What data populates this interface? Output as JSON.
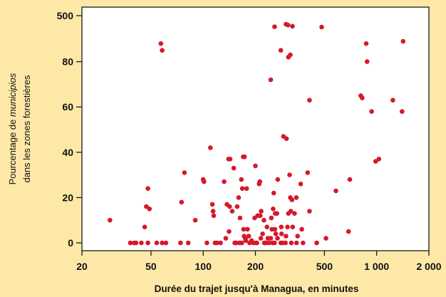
{
  "chart_data": {
    "type": "scatter",
    "title": "",
    "xlabel": "Durée du trajet jusqu'à Managua, en minutes",
    "ylabel": {
      "line1_prefix": "Pourcentage de ",
      "line1_italic": "municipios",
      "line2": "dans les zones forestières"
    },
    "x_scale": "log",
    "xlim": [
      20,
      2000
    ],
    "ylim": [
      0,
      500
    ],
    "x_ticks": [
      {
        "value": 20,
        "label": "20"
      },
      {
        "value": 50,
        "label": "50"
      },
      {
        "value": 100,
        "label": "100"
      },
      {
        "value": 200,
        "label": "200"
      },
      {
        "value": 500,
        "label": "500"
      },
      {
        "value": 1000,
        "label": "1 000"
      },
      {
        "value": 2000,
        "label": "2 000"
      }
    ],
    "y_ticks": [
      {
        "value": 0,
        "label": "0"
      },
      {
        "value": 20,
        "label": "20"
      },
      {
        "value": 40,
        "label": "40"
      },
      {
        "value": 60,
        "label": "60"
      },
      {
        "value": 80,
        "label": "80"
      },
      {
        "value": 500,
        "label": "500"
      }
    ],
    "grid": false,
    "point_color": "#d7182a",
    "background_color": "#fde8a8",
    "plot_background": "#ffffff",
    "points": [
      [
        29,
        10
      ],
      [
        38,
        0
      ],
      [
        40,
        0
      ],
      [
        41,
        0
      ],
      [
        44,
        0
      ],
      [
        46,
        7
      ],
      [
        47,
        16
      ],
      [
        48,
        0
      ],
      [
        48,
        24
      ],
      [
        49,
        15
      ],
      [
        54,
        0
      ],
      [
        58,
        0
      ],
      [
        61,
        0
      ],
      [
        74,
        0
      ],
      [
        75,
        18
      ],
      [
        78,
        31
      ],
      [
        82,
        0
      ],
      [
        90,
        10
      ],
      [
        101,
        27
      ],
      [
        100,
        28
      ],
      [
        105,
        0
      ],
      [
        110,
        42
      ],
      [
        113,
        17
      ],
      [
        114,
        14
      ],
      [
        115,
        12
      ],
      [
        117,
        0
      ],
      [
        120,
        0
      ],
      [
        126,
        0
      ],
      [
        132,
        27
      ],
      [
        135,
        2
      ],
      [
        137,
        17
      ],
      [
        140,
        37
      ],
      [
        141,
        5
      ],
      [
        142,
        16
      ],
      [
        143,
        37
      ],
      [
        147,
        14
      ],
      [
        150,
        33
      ],
      [
        152,
        0
      ],
      [
        155,
        0
      ],
      [
        157,
        16
      ],
      [
        160,
        20
      ],
      [
        162,
        0
      ],
      [
        163,
        11
      ],
      [
        166,
        28
      ],
      [
        167,
        0
      ],
      [
        168,
        24
      ],
      [
        170,
        38
      ],
      [
        171,
        6
      ],
      [
        172,
        3
      ],
      [
        173,
        38
      ],
      [
        175,
        2
      ],
      [
        176,
        1
      ],
      [
        178,
        24
      ],
      [
        180,
        6
      ],
      [
        183,
        3
      ],
      [
        185,
        0
      ],
      [
        190,
        1
      ],
      [
        195,
        0
      ],
      [
        198,
        11
      ],
      [
        200,
        34
      ],
      [
        202,
        0
      ],
      [
        204,
        0
      ],
      [
        206,
        12
      ],
      [
        210,
        26
      ],
      [
        212,
        27
      ],
      [
        213,
        12
      ],
      [
        215,
        2
      ],
      [
        216,
        14
      ],
      [
        220,
        4
      ],
      [
        224,
        10
      ],
      [
        225,
        0
      ],
      [
        228,
        0
      ],
      [
        230,
        0
      ],
      [
        233,
        7
      ],
      [
        236,
        2
      ],
      [
        240,
        0
      ],
      [
        245,
        2
      ],
      [
        247,
        11
      ],
      [
        249,
        6
      ],
      [
        252,
        0
      ],
      [
        253,
        15
      ],
      [
        255,
        22
      ],
      [
        258,
        0
      ],
      [
        259,
        6
      ],
      [
        260,
        13
      ],
      [
        262,
        4
      ],
      [
        266,
        13
      ],
      [
        268,
        2
      ],
      [
        269,
        28
      ],
      [
        280,
        0
      ],
      [
        282,
        7
      ],
      [
        283,
        4
      ],
      [
        286,
        0
      ],
      [
        298,
        0
      ],
      [
        300,
        3
      ],
      [
        306,
        7
      ],
      [
        310,
        13
      ],
      [
        315,
        30
      ],
      [
        318,
        20
      ],
      [
        320,
        14
      ],
      [
        322,
        0
      ],
      [
        325,
        19
      ],
      [
        328,
        7
      ],
      [
        336,
        13
      ],
      [
        344,
        20
      ],
      [
        345,
        0
      ],
      [
        350,
        3
      ],
      [
        365,
        26
      ],
      [
        370,
        6
      ],
      [
        376,
        0
      ],
      [
        400,
        31
      ],
      [
        410,
        14
      ],
      [
        451,
        0
      ],
      [
        510,
        2
      ],
      [
        582,
        23
      ],
      [
        688,
        5
      ],
      [
        700,
        28
      ],
      [
        935,
        58
      ],
      [
        986,
        36
      ],
      [
        1030,
        37
      ],
      [
        1240,
        63
      ],
      [
        1400,
        58
      ],
      [
        57,
        88
      ],
      [
        58,
        85
      ],
      [
        410,
        63
      ],
      [
        810,
        65
      ],
      [
        825,
        64
      ],
      [
        870,
        88
      ],
      [
        880,
        80
      ],
      [
        1420,
        89
      ],
      [
        245,
        72
      ],
      [
        280,
        85
      ],
      [
        310,
        82
      ],
      [
        318,
        83
      ],
      [
        290,
        47
      ],
      [
        302,
        46
      ],
      [
        258,
        461
      ],
      [
        300,
        470
      ],
      [
        308,
        467
      ],
      [
        327,
        463
      ],
      [
        482,
        460
      ]
    ]
  }
}
